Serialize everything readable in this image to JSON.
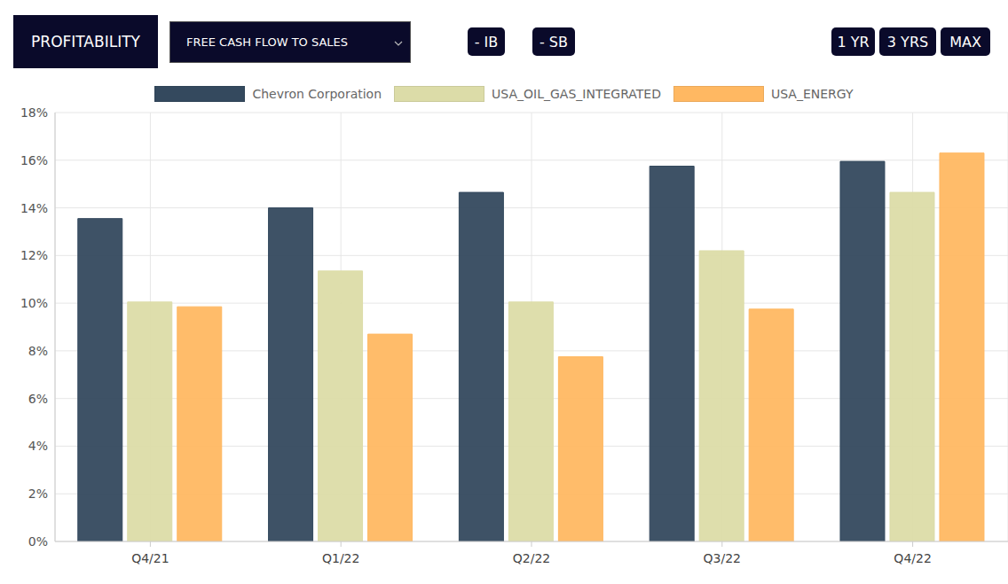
{
  "header": {
    "section": "PROFITABILITY",
    "metric": "FREE CASH FLOW TO SALES",
    "toggles": [
      "- IB",
      "- SB"
    ],
    "periods": [
      "1 YR",
      "3 YRS",
      "MAX"
    ]
  },
  "chart_data": {
    "type": "bar",
    "categories": [
      "Q4/21",
      "Q1/22",
      "Q2/22",
      "Q3/22",
      "Q4/22"
    ],
    "series": [
      {
        "name": "Chevron Corporation",
        "color": "#34495e",
        "values": [
          13.55,
          14.0,
          14.65,
          15.75,
          15.95
        ]
      },
      {
        "name": "USA_OIL_GAS_INTEGRATED",
        "color": "#dcdca8",
        "values": [
          10.05,
          11.35,
          10.05,
          12.2,
          14.65
        ]
      },
      {
        "name": "USA_ENERGY",
        "color": "#ffb862",
        "values": [
          9.85,
          8.7,
          7.75,
          9.75,
          16.3
        ]
      }
    ],
    "ylim": [
      0,
      18
    ],
    "yticks": [
      {
        "value": 0,
        "label": "0%"
      },
      {
        "value": 2,
        "label": "2%"
      },
      {
        "value": 4,
        "label": "4%"
      },
      {
        "value": 6,
        "label": "6%"
      },
      {
        "value": 8,
        "label": "8%"
      },
      {
        "value": 10,
        "label": "10%"
      },
      {
        "value": 12,
        "label": "12%"
      },
      {
        "value": 14,
        "label": "14%"
      },
      {
        "value": 16,
        "label": "16%"
      },
      {
        "value": 18,
        "label": "18%"
      }
    ],
    "grid": true,
    "legend": "top"
  }
}
